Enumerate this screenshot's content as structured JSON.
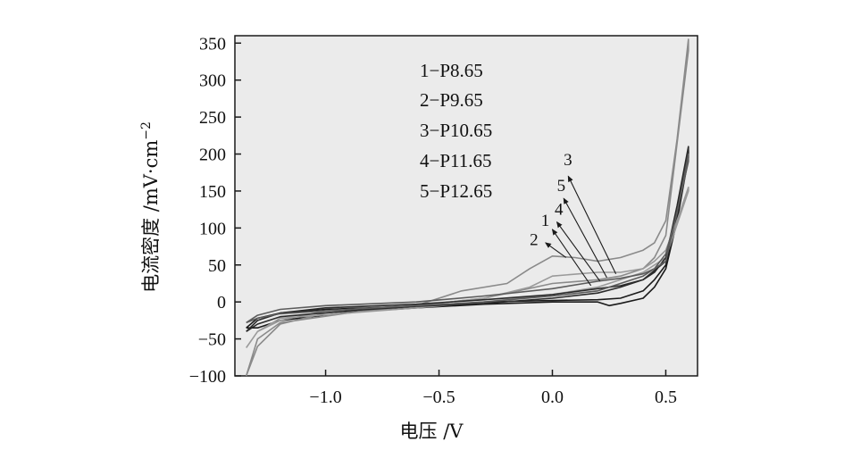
{
  "chart_data": {
    "type": "line",
    "title": "",
    "xlabel": "电压 /V",
    "ylabel": "电流密度 /mV·cm",
    "ylabel_sup": "−2",
    "xlim": [
      -1.4,
      0.64
    ],
    "ylim": [
      -100,
      360
    ],
    "xticks": [
      -1.0,
      -0.5,
      0.0,
      0.5
    ],
    "xtick_labels": [
      "−1.0",
      "−0.5",
      "0.0",
      "0.5"
    ],
    "yticks": [
      -100,
      -50,
      0,
      50,
      100,
      150,
      200,
      250,
      300,
      350
    ],
    "ytick_labels": [
      "−100",
      "−50",
      "0",
      "50",
      "100",
      "150",
      "200",
      "250",
      "300",
      "350"
    ],
    "grid": false,
    "legend": [
      "1−P8.65",
      "2−P9.65",
      "3−P10.65",
      "4−P11.65",
      "5−P12.65"
    ],
    "legend_position": "top-center",
    "series": [
      {
        "name": "1",
        "color": "#1a1a1a",
        "x": [
          -1.35,
          -1.3,
          -1.2,
          -1.0,
          -0.8,
          -0.5,
          -0.3,
          0.0,
          0.2,
          0.3,
          0.4,
          0.45,
          0.5,
          0.55,
          0.6,
          0.6,
          0.55,
          0.5,
          0.45,
          0.4,
          0.3,
          0.25,
          0.2,
          0.0,
          -0.3,
          -0.6,
          -0.9,
          -1.2,
          -1.3,
          -1.35
        ],
        "y": [
          -35,
          -22,
          -15,
          -10,
          -8,
          -4,
          0,
          2,
          3,
          5,
          15,
          30,
          50,
          120,
          205,
          195,
          110,
          45,
          20,
          5,
          -2,
          -5,
          0,
          0,
          -3,
          -8,
          -14,
          -25,
          -35,
          -35
        ]
      },
      {
        "name": "2",
        "color": "#8a8a8a",
        "x": [
          -1.35,
          -1.3,
          -1.2,
          -1.0,
          -0.6,
          -0.4,
          -0.2,
          -0.1,
          0.0,
          0.1,
          0.2,
          0.3,
          0.4,
          0.45,
          0.5,
          0.55,
          0.6,
          0.6,
          0.5,
          0.45,
          0.4,
          0.3,
          0.2,
          0.0,
          -0.3,
          -0.6,
          -0.9,
          -1.2,
          -1.3,
          -1.35
        ],
        "y": [
          -100,
          -60,
          -30,
          -15,
          -5,
          15,
          25,
          45,
          62,
          60,
          55,
          60,
          70,
          80,
          110,
          220,
          355,
          340,
          90,
          60,
          45,
          35,
          30,
          25,
          5,
          -5,
          -15,
          -28,
          -50,
          -100
        ]
      },
      {
        "name": "3",
        "color": "#9a9a9a",
        "x": [
          -1.35,
          -1.3,
          -1.2,
          -1.0,
          -0.6,
          -0.3,
          -0.1,
          0.0,
          0.2,
          0.3,
          0.4,
          0.45,
          0.5,
          0.55,
          0.6,
          0.6,
          0.5,
          0.4,
          0.3,
          0.2,
          0.0,
          -0.3,
          -0.6,
          -0.9,
          -1.2,
          -1.3,
          -1.35
        ],
        "y": [
          -62,
          -40,
          -25,
          -12,
          -5,
          5,
          20,
          35,
          40,
          40,
          45,
          55,
          70,
          110,
          155,
          150,
          60,
          40,
          30,
          20,
          10,
          0,
          -8,
          -15,
          -22,
          -40,
          -62
        ]
      },
      {
        "name": "4",
        "color": "#2a2a2a",
        "x": [
          -1.35,
          -1.3,
          -1.2,
          -1.0,
          -0.6,
          -0.3,
          0.0,
          0.2,
          0.3,
          0.4,
          0.45,
          0.5,
          0.55,
          0.6,
          0.6,
          0.5,
          0.4,
          0.3,
          0.2,
          0.0,
          -0.3,
          -0.6,
          -0.9,
          -1.2,
          -1.3,
          -1.35
        ],
        "y": [
          -40,
          -25,
          -15,
          -8,
          -3,
          3,
          10,
          18,
          22,
          30,
          40,
          60,
          130,
          210,
          200,
          55,
          30,
          20,
          12,
          5,
          -2,
          -6,
          -12,
          -20,
          -30,
          -40
        ]
      },
      {
        "name": "5",
        "color": "#5c5c5c",
        "x": [
          -1.35,
          -1.3,
          -1.2,
          -1.0,
          -0.6,
          -0.3,
          0.0,
          0.2,
          0.3,
          0.4,
          0.45,
          0.5,
          0.55,
          0.6,
          0.6,
          0.5,
          0.4,
          0.3,
          0.2,
          0.0,
          -0.3,
          -0.6,
          -0.9,
          -1.2,
          -1.3,
          -1.35
        ],
        "y": [
          -28,
          -18,
          -10,
          -5,
          0,
          8,
          18,
          28,
          32,
          38,
          45,
          65,
          120,
          200,
          190,
          55,
          35,
          25,
          15,
          8,
          0,
          -5,
          -10,
          -16,
          -22,
          -28
        ]
      }
    ],
    "annotations": [
      {
        "label": "3",
        "text_x": 0.05,
        "text_y": 185,
        "arrow_from": [
          0.28,
          38
        ],
        "arrow_to": [
          0.07,
          170
        ]
      },
      {
        "label": "5",
        "text_x": 0.02,
        "text_y": 150,
        "arrow_from": [
          0.24,
          33
        ],
        "arrow_to": [
          0.05,
          140
        ]
      },
      {
        "label": "4",
        "text_x": 0.01,
        "text_y": 118,
        "arrow_from": [
          0.21,
          28
        ],
        "arrow_to": [
          0.02,
          108
        ]
      },
      {
        "label": "1",
        "text_x": -0.05,
        "text_y": 103,
        "arrow_from": [
          0.17,
          22
        ],
        "arrow_to": [
          0.0,
          98
        ]
      },
      {
        "label": "2",
        "text_x": -0.1,
        "text_y": 77,
        "arrow_from": [
          0.06,
          60
        ],
        "arrow_to": [
          -0.03,
          80
        ]
      }
    ]
  }
}
